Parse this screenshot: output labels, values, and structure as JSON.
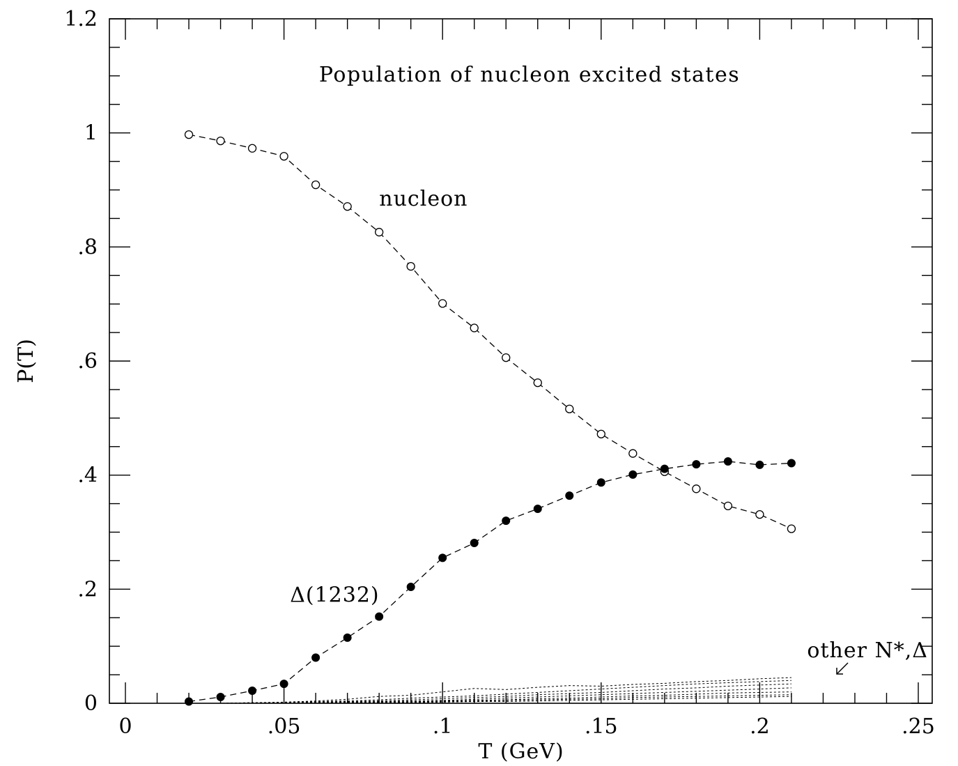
{
  "chart_data": {
    "type": "scatter",
    "title": "Population of nucleon excited states",
    "xlabel": "T (GeV)",
    "ylabel": "P(T)",
    "xlim": [
      0,
      0.25
    ],
    "ylim": [
      0,
      1.2
    ],
    "x_ticks": [
      {
        "value": 0,
        "label": "0"
      },
      {
        "value": 0.05,
        "label": ".05"
      },
      {
        "value": 0.1,
        "label": ".1"
      },
      {
        "value": 0.15,
        "label": ".15"
      },
      {
        "value": 0.2,
        "label": ".2"
      },
      {
        "value": 0.25,
        "label": ".25"
      }
    ],
    "y_ticks": [
      {
        "value": 0,
        "label": "0"
      },
      {
        "value": 0.2,
        "label": ".2"
      },
      {
        "value": 0.4,
        "label": ".4"
      },
      {
        "value": 0.6,
        "label": ".6"
      },
      {
        "value": 0.8,
        "label": ".8"
      },
      {
        "value": 1.0,
        "label": "1"
      },
      {
        "value": 1.2,
        "label": "1.2"
      }
    ],
    "grid": false,
    "x": [
      0.02,
      0.03,
      0.04,
      0.05,
      0.06,
      0.07,
      0.08,
      0.09,
      0.1,
      0.11,
      0.12,
      0.13,
      0.14,
      0.15,
      0.16,
      0.17,
      0.18,
      0.19,
      0.2,
      0.21
    ],
    "series": [
      {
        "name": "nucleon",
        "marker": "open-circle",
        "line": "dashed",
        "values": [
          0.997,
          0.986,
          0.973,
          0.959,
          0.909,
          0.871,
          0.826,
          0.766,
          0.701,
          0.658,
          0.606,
          0.562,
          0.516,
          0.472,
          0.438,
          0.406,
          0.376,
          0.346,
          0.331,
          0.306
        ]
      },
      {
        "name": "Δ(1232)",
        "marker": "filled-circle",
        "line": "dashed",
        "values": [
          0.003,
          0.011,
          0.022,
          0.034,
          0.08,
          0.115,
          0.152,
          0.204,
          0.255,
          0.281,
          0.32,
          0.341,
          0.364,
          0.387,
          0.401,
          0.411,
          0.419,
          0.424,
          0.418,
          0.421
        ]
      }
    ],
    "other_states": {
      "label": "other N*,Δ",
      "line": "dotted",
      "curves": [
        [
          0.0,
          0.0,
          0.001,
          0.002,
          0.004,
          0.007,
          0.012,
          0.014,
          0.02,
          0.026,
          0.024,
          0.028,
          0.031,
          0.03,
          0.033,
          0.035,
          0.038,
          0.04,
          0.043,
          0.045
        ],
        [
          0.0,
          0.0,
          0.001,
          0.001,
          0.003,
          0.004,
          0.006,
          0.009,
          0.011,
          0.013,
          0.016,
          0.019,
          0.022,
          0.025,
          0.028,
          0.031,
          0.034,
          0.036,
          0.038,
          0.04
        ],
        [
          0.0,
          0.0,
          0.0,
          0.001,
          0.002,
          0.003,
          0.004,
          0.006,
          0.008,
          0.01,
          0.012,
          0.015,
          0.017,
          0.019,
          0.022,
          0.025,
          0.027,
          0.03,
          0.032,
          0.034
        ],
        [
          0.0,
          0.0,
          0.0,
          0.0,
          0.001,
          0.002,
          0.003,
          0.004,
          0.005,
          0.007,
          0.009,
          0.011,
          0.013,
          0.015,
          0.017,
          0.019,
          0.021,
          0.023,
          0.025,
          0.027
        ],
        [
          0.0,
          0.0,
          0.0,
          0.0,
          0.001,
          0.001,
          0.002,
          0.003,
          0.004,
          0.005,
          0.006,
          0.008,
          0.009,
          0.011,
          0.013,
          0.014,
          0.016,
          0.018,
          0.019,
          0.02
        ],
        [
          0.0,
          0.0,
          0.0,
          0.0,
          0.0,
          0.001,
          0.001,
          0.002,
          0.003,
          0.004,
          0.005,
          0.006,
          0.007,
          0.008,
          0.01,
          0.011,
          0.012,
          0.013,
          0.014,
          0.015
        ],
        [
          0.0,
          0.0,
          0.0,
          0.0,
          0.0,
          0.0,
          0.001,
          0.001,
          0.002,
          0.003,
          0.003,
          0.004,
          0.005,
          0.006,
          0.007,
          0.008,
          0.009,
          0.01,
          0.011,
          0.012
        ]
      ]
    },
    "annotations": [
      {
        "text": "nucleon",
        "x": 0.094,
        "y": 0.885
      },
      {
        "text": "Δ(1232)",
        "x": 0.066,
        "y": 0.19
      },
      {
        "text": "other N*,Δ",
        "x": 0.234,
        "y": 0.093
      }
    ]
  }
}
